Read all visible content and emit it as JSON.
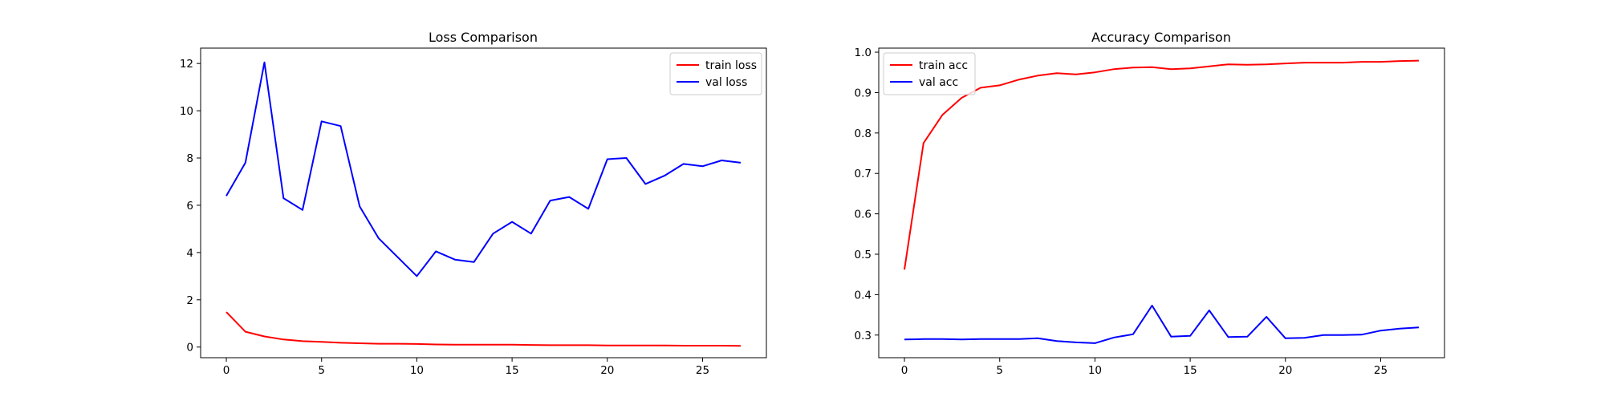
{
  "chart_data": [
    {
      "type": "line",
      "title": "Loss Comparison",
      "xlabel": "",
      "ylabel": "",
      "xlim": [
        -1.35,
        28.35
      ],
      "ylim": [
        -0.45,
        12.65
      ],
      "xticks": [
        0,
        5,
        10,
        15,
        20,
        25
      ],
      "yticks": [
        0,
        2,
        4,
        6,
        8,
        10,
        12
      ],
      "grid": false,
      "legend_position": "top-right",
      "x": [
        0,
        1,
        2,
        3,
        4,
        5,
        6,
        7,
        8,
        9,
        10,
        11,
        12,
        13,
        14,
        15,
        16,
        17,
        18,
        19,
        20,
        21,
        22,
        23,
        24,
        25,
        26,
        27
      ],
      "series": [
        {
          "name": "train loss",
          "color": "#ff0000",
          "values": [
            1.48,
            0.65,
            0.45,
            0.32,
            0.25,
            0.22,
            0.18,
            0.16,
            0.14,
            0.14,
            0.13,
            0.11,
            0.1,
            0.1,
            0.1,
            0.1,
            0.09,
            0.08,
            0.08,
            0.08,
            0.07,
            0.07,
            0.07,
            0.07,
            0.06,
            0.06,
            0.06,
            0.05
          ]
        },
        {
          "name": "val loss",
          "color": "#0000ff",
          "values": [
            6.4,
            7.8,
            12.05,
            6.3,
            5.8,
            9.55,
            9.35,
            5.95,
            4.6,
            3.8,
            3.0,
            4.05,
            3.7,
            3.6,
            4.8,
            5.3,
            4.8,
            6.2,
            6.35,
            5.85,
            7.95,
            8.0,
            6.9,
            7.25,
            7.75,
            7.65,
            7.9,
            7.8
          ]
        }
      ]
    },
    {
      "type": "line",
      "title": "Accuracy Comparison",
      "xlabel": "",
      "ylabel": "",
      "xlim": [
        -1.35,
        28.35
      ],
      "ylim": [
        0.244,
        1.01
      ],
      "xticks": [
        0,
        5,
        10,
        15,
        20,
        25
      ],
      "yticks": [
        0.3,
        0.4,
        0.5,
        0.6,
        0.7,
        0.8,
        0.9,
        1.0
      ],
      "grid": false,
      "legend_position": "top-left",
      "x": [
        0,
        1,
        2,
        3,
        4,
        5,
        6,
        7,
        8,
        9,
        10,
        11,
        12,
        13,
        14,
        15,
        16,
        17,
        18,
        19,
        20,
        21,
        22,
        23,
        24,
        25,
        26,
        27
      ],
      "series": [
        {
          "name": "train acc",
          "color": "#ff0000",
          "values": [
            0.462,
            0.775,
            0.845,
            0.887,
            0.912,
            0.918,
            0.932,
            0.942,
            0.948,
            0.945,
            0.95,
            0.958,
            0.962,
            0.963,
            0.958,
            0.96,
            0.965,
            0.97,
            0.969,
            0.97,
            0.972,
            0.974,
            0.974,
            0.974,
            0.976,
            0.976,
            0.978,
            0.979
          ]
        },
        {
          "name": "val acc",
          "color": "#0000ff",
          "values": [
            0.289,
            0.29,
            0.29,
            0.289,
            0.29,
            0.29,
            0.29,
            0.292,
            0.285,
            0.282,
            0.28,
            0.294,
            0.302,
            0.373,
            0.296,
            0.298,
            0.361,
            0.295,
            0.296,
            0.345,
            0.292,
            0.293,
            0.3,
            0.3,
            0.301,
            0.311,
            0.316,
            0.319
          ]
        }
      ]
    }
  ]
}
